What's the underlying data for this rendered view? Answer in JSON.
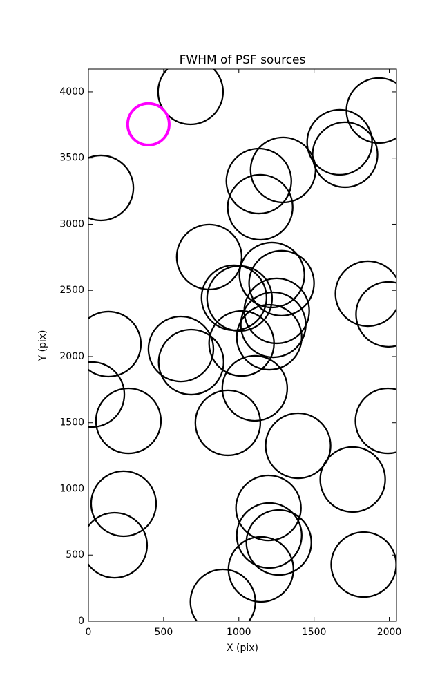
{
  "chart_data": {
    "type": "scatter",
    "title": "FWHM of PSF sources",
    "x_label": "X (pix)",
    "y_label": "Y (pix)",
    "xlim": [
      0,
      2048
    ],
    "ylim": [
      0,
      4172
    ],
    "xticks": [
      0,
      500,
      1000,
      1500,
      2000
    ],
    "yticks": [
      0,
      500,
      1000,
      1500,
      2000,
      2500,
      3000,
      3500,
      4000
    ],
    "series": [
      {
        "color": "#000000",
        "x": [
          679,
          1931,
          1670,
          1706,
          83,
          1133,
          1294,
          1142,
          803,
          1220,
          1284,
          968,
          1005,
          1858,
          1995,
          1252,
          1229,
          1202,
          1018,
          133,
          615,
          683,
          23,
          1106,
          266,
          927,
          1991,
          1394,
          1757,
          234,
          1197,
          1202,
          1266,
          174,
          1830,
          1147,
          894
        ],
        "values": [
          4000,
          3859,
          3619,
          3525,
          3274,
          3326,
          3410,
          3128,
          2752,
          2616,
          2554,
          2444,
          2439,
          2475,
          2319,
          2345,
          2240,
          2146,
          2099,
          2094,
          2057,
          1958,
          1713,
          1760,
          1514,
          1499,
          1514,
          1326,
          1071,
          888,
          856,
          648,
          595,
          574,
          428,
          392,
          146
        ],
        "sizes": [
          216,
          216,
          216,
          216,
          216,
          216,
          216,
          216,
          216,
          216,
          216,
          216,
          216,
          216,
          216,
          216,
          216,
          216,
          216,
          216,
          216,
          216,
          216,
          216,
          216,
          216,
          216,
          216,
          216,
          216,
          216,
          216,
          216,
          216,
          216,
          216,
          216
        ]
      },
      {
        "color": "#ff00ff",
        "x": [
          399
        ],
        "values": [
          3755
        ],
        "sizes": [
          138
        ]
      }
    ]
  }
}
